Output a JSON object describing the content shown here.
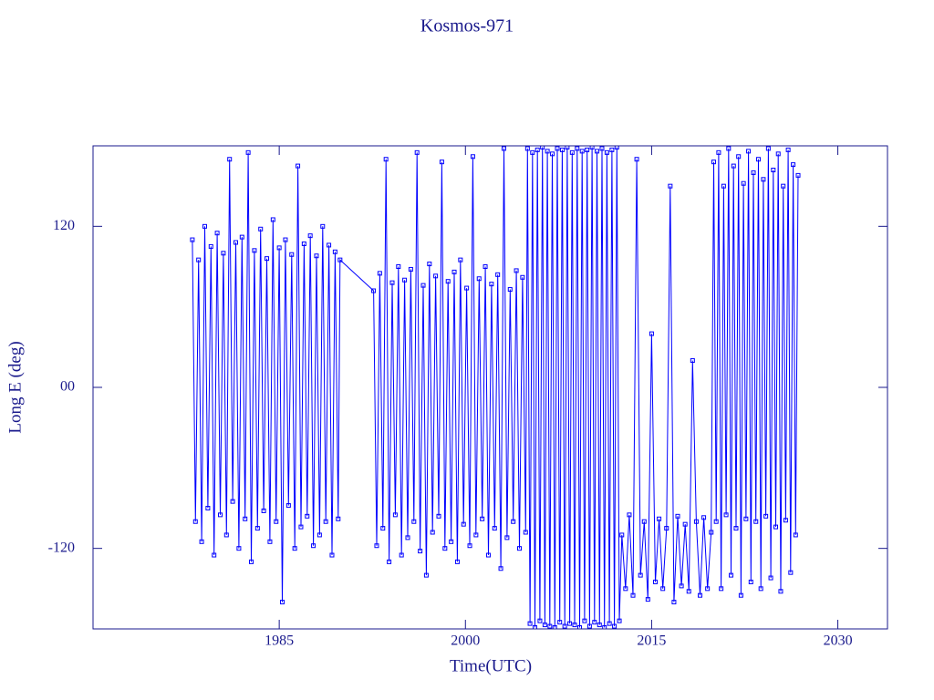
{
  "chart_data": {
    "type": "line",
    "title": "Kosmos-971",
    "x_label": "Time(UTC)",
    "y_label": "Long E (deg)",
    "xlim": [
      1970,
      2034
    ],
    "xticks": [
      1985,
      2000,
      2015,
      2030
    ],
    "ylim": [
      -180,
      180
    ],
    "yticks": [
      -120,
      {
        "value": 0,
        "label": "00"
      },
      120
    ],
    "series": [
      {
        "name": "Kosmos-971",
        "color": "#0000ff",
        "x": [
          1978,
          1978.25,
          1978.5,
          1978.75,
          1979,
          1979.25,
          1979.5,
          1979.75,
          1980,
          1980.25,
          1980.5,
          1980.75,
          1981,
          1981.25,
          1981.5,
          1981.75,
          1982,
          1982.25,
          1982.5,
          1982.75,
          1983,
          1983.25,
          1983.5,
          1983.75,
          1984,
          1984.25,
          1984.5,
          1984.75,
          1985,
          1985.25,
          1985.5,
          1985.75,
          1986,
          1986.25,
          1986.5,
          1986.75,
          1987,
          1987.25,
          1987.5,
          1987.75,
          1988,
          1988.25,
          1988.5,
          1988.75,
          1989,
          1989.25,
          1989.5,
          1989.75,
          1989.9,
          1992.6,
          1992.85,
          1993.1,
          1993.35,
          1993.6,
          1993.85,
          1994.1,
          1994.35,
          1994.6,
          1994.85,
          1995.1,
          1995.35,
          1995.6,
          1995.85,
          1996.1,
          1996.35,
          1996.6,
          1996.85,
          1997.1,
          1997.35,
          1997.6,
          1997.85,
          1998.1,
          1998.35,
          1998.6,
          1998.85,
          1999.1,
          1999.35,
          1999.6,
          1999.85,
          2000.1,
          2000.35,
          2000.6,
          2000.85,
          2001.1,
          2001.35,
          2001.6,
          2001.85,
          2002.1,
          2002.35,
          2002.6,
          2002.85,
          2003.1,
          2003.35,
          2003.6,
          2003.85,
          2004.1,
          2004.35,
          2004.6,
          2004.85,
          2005,
          2005.2,
          2005.4,
          2005.6,
          2005.8,
          2006,
          2006.2,
          2006.4,
          2006.6,
          2006.8,
          2007,
          2007.2,
          2007.4,
          2007.6,
          2007.8,
          2008,
          2008.2,
          2008.4,
          2008.6,
          2008.8,
          2009,
          2009.2,
          2009.4,
          2009.6,
          2009.8,
          2010,
          2010.2,
          2010.4,
          2010.6,
          2010.8,
          2011,
          2011.2,
          2011.4,
          2011.6,
          2011.8,
          2012,
          2012.2,
          2012.4,
          2012.6,
          2012.9,
          2013.2,
          2013.5,
          2013.8,
          2014.1,
          2014.4,
          2014.7,
          2015,
          2015.3,
          2015.6,
          2015.9,
          2016.2,
          2016.5,
          2016.8,
          2017.1,
          2017.4,
          2017.7,
          2018,
          2018.3,
          2018.6,
          2018.9,
          2019.2,
          2019.5,
          2019.8,
          2020,
          2020.2,
          2020.4,
          2020.6,
          2020.8,
          2021,
          2021.2,
          2021.4,
          2021.6,
          2021.8,
          2022,
          2022.2,
          2022.4,
          2022.6,
          2022.8,
          2023,
          2023.2,
          2023.4,
          2023.6,
          2023.8,
          2024,
          2024.2,
          2024.4,
          2024.6,
          2024.8,
          2025,
          2025.2,
          2025.4,
          2025.6,
          2025.8,
          2026,
          2026.2,
          2026.4,
          2026.6,
          2026.8
        ],
        "values": [
          110,
          -100,
          95,
          -115,
          120,
          -90,
          105,
          -125,
          115,
          -95,
          100,
          -110,
          170,
          -85,
          108,
          -120,
          112,
          -98,
          175,
          -130,
          102,
          -105,
          118,
          -92,
          96,
          -115,
          125,
          -100,
          104,
          -160,
          110,
          -88,
          99,
          -120,
          165,
          -104,
          107,
          -96,
          113,
          -118,
          98,
          -110,
          120,
          -100,
          106,
          -125,
          101,
          -98,
          95,
          72,
          -118,
          85,
          -105,
          170,
          -130,
          78,
          -95,
          90,
          -125,
          80,
          -112,
          88,
          -100,
          175,
          -122,
          76,
          -140,
          92,
          -108,
          83,
          -96,
          168,
          -120,
          79,
          -115,
          86,
          -130,
          95,
          -102,
          74,
          -118,
          172,
          -110,
          81,
          -98,
          90,
          -125,
          77,
          -105,
          84,
          -135,
          178,
          -112,
          73,
          -100,
          87,
          -120,
          82,
          -108,
          178,
          -176,
          175,
          -179,
          177,
          -174,
          179,
          -177,
          176,
          -178,
          174,
          -179,
          178,
          -175,
          177,
          -178,
          179,
          -176,
          175,
          -177,
          178,
          -179,
          176,
          -174,
          177,
          -178,
          179,
          -175,
          176,
          -177,
          178,
          -179,
          175,
          -176,
          177,
          -178,
          179,
          -174,
          -110,
          -150,
          -95,
          -155,
          170,
          -140,
          -100,
          -158,
          40,
          -145,
          -98,
          -150,
          -105,
          150,
          -160,
          -96,
          -148,
          -102,
          -152,
          20,
          -100,
          -155,
          -97,
          -150,
          -108,
          168,
          -100,
          175,
          -150,
          150,
          -95,
          178,
          -140,
          165,
          -105,
          172,
          -155,
          152,
          -98,
          176,
          -145,
          160,
          -100,
          170,
          -150,
          155,
          -96,
          178,
          -142,
          162,
          -104,
          174,
          -152,
          150,
          -99,
          177,
          -138,
          166,
          -110,
          158
        ]
      }
    ]
  }
}
